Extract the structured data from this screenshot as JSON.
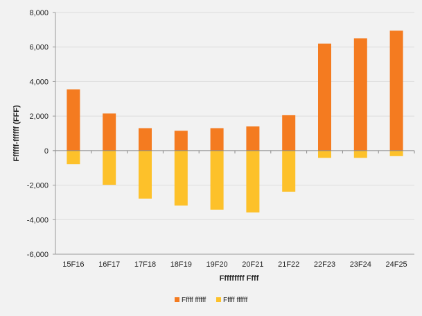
{
  "chart_data": {
    "type": "bar",
    "xlabel": "Fffffffff Ffff",
    "ylabel": "Ffffff-ffffff (FFF)",
    "ylim": [
      -6000,
      8000
    ],
    "yticks": [
      8000,
      6000,
      4000,
      2000,
      0,
      -2000,
      -4000,
      -6000
    ],
    "ytick_labels": [
      "8,000",
      "6,000",
      "4,000",
      "2,000",
      "0",
      "-2,000",
      "-4,000",
      "-6,000"
    ],
    "grid": true,
    "legend_position": "bottom",
    "categories": [
      "15F16",
      "16F17",
      "17F18",
      "18F19",
      "19F20",
      "20F21",
      "21F22",
      "22F23",
      "23F24",
      "24F25"
    ],
    "series": [
      {
        "name": "Fffff ffffff",
        "color": "#f47b20",
        "values": [
          3550,
          2150,
          1300,
          1150,
          1300,
          1400,
          2050,
          6200,
          6500,
          6950
        ]
      },
      {
        "name": "Fffff ffffff",
        "color": "#fdc12a",
        "values": [
          -780,
          -1980,
          -2780,
          -3180,
          -3420,
          -3580,
          -2380,
          -420,
          -420,
          -320
        ]
      }
    ]
  }
}
